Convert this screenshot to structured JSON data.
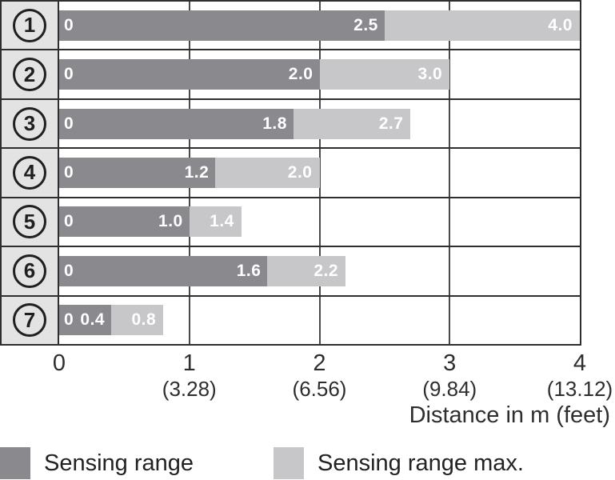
{
  "chart_data": {
    "type": "bar",
    "orientation": "horizontal",
    "x_axis": {
      "label": "Distance in m (feet)",
      "range": [
        0,
        4
      ],
      "gridlines_at": [
        1,
        2,
        3
      ],
      "ticks": [
        {
          "m": "0",
          "feet": ""
        },
        {
          "m": "1",
          "feet": "(3.28)"
        },
        {
          "m": "2",
          "feet": "(6.56)"
        },
        {
          "m": "3",
          "feet": "(9.84)"
        },
        {
          "m": "4",
          "feet": "(13.12)"
        }
      ]
    },
    "rows": [
      {
        "num": "1",
        "zero_label": "0",
        "sensing_range": 2.5,
        "sensing_range_label": "2.5",
        "sensing_range_max": 4.0,
        "sensing_range_max_label": "4.0"
      },
      {
        "num": "2",
        "zero_label": "0",
        "sensing_range": 2.0,
        "sensing_range_label": "2.0",
        "sensing_range_max": 3.0,
        "sensing_range_max_label": "3.0"
      },
      {
        "num": "3",
        "zero_label": "0",
        "sensing_range": 1.8,
        "sensing_range_label": "1.8",
        "sensing_range_max": 2.7,
        "sensing_range_max_label": "2.7"
      },
      {
        "num": "4",
        "zero_label": "0",
        "sensing_range": 1.2,
        "sensing_range_label": "1.2",
        "sensing_range_max": 2.0,
        "sensing_range_max_label": "2.0"
      },
      {
        "num": "5",
        "zero_label": "0",
        "sensing_range": 1.0,
        "sensing_range_label": "1.0",
        "sensing_range_max": 1.4,
        "sensing_range_max_label": "1.4"
      },
      {
        "num": "6",
        "zero_label": "0",
        "sensing_range": 1.6,
        "sensing_range_label": "1.6",
        "sensing_range_max": 2.2,
        "sensing_range_max_label": "2.2"
      },
      {
        "num": "7",
        "zero_label": "0",
        "sensing_range": 0.4,
        "sensing_range_label": "0.4",
        "sensing_range_max": 0.8,
        "sensing_range_max_label": "0.8"
      }
    ],
    "legend": [
      {
        "label": "Sensing range",
        "color": "#8a8a8e"
      },
      {
        "label": "Sensing range max.",
        "color": "#c7c7c9"
      }
    ]
  },
  "colors": {
    "bar_dark": "#8a8a8e",
    "bar_light": "#c7c7c9",
    "row_label_bg": "#e3e3e3",
    "border": "#2e2e2e",
    "gridline": "#4a4a4a",
    "bar_text": "#ffffff",
    "axis_text": "#2e2e2e"
  }
}
